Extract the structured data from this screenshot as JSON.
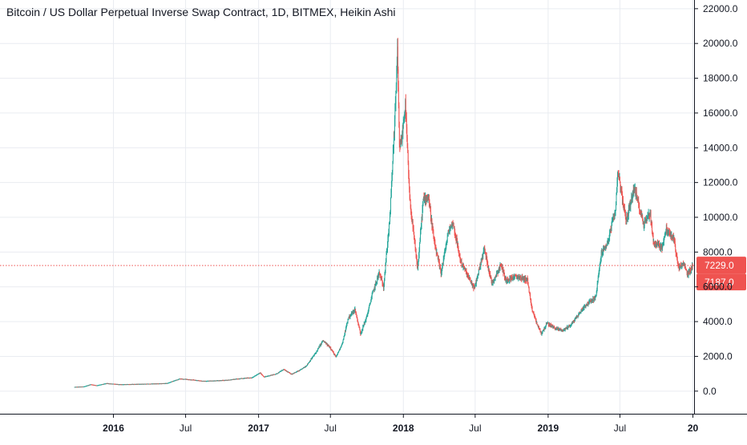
{
  "chart_data": {
    "type": "candlestick",
    "title": "Bitcoin / US Dollar Perpetual Inverse Swap Contract, 1D, BITMEX, Heikin Ashi",
    "xlabel": "",
    "ylabel": "",
    "ylim": [
      -1300,
      22500
    ],
    "grid": true,
    "legend": "none",
    "y_ticks": [
      "0.0",
      "2000.0",
      "4000.0",
      "6000.0",
      "8000.0",
      "10000.0",
      "12000.0",
      "14000.0",
      "16000.0",
      "18000.0",
      "20000.0",
      "22000.0"
    ],
    "x_ticks": [
      {
        "label": "2016",
        "date": "2016-01-01",
        "bold": true
      },
      {
        "label": "Jul",
        "date": "2016-07-01",
        "bold": false
      },
      {
        "label": "2017",
        "date": "2017-01-01",
        "bold": true
      },
      {
        "label": "Jul",
        "date": "2017-07-01",
        "bold": false
      },
      {
        "label": "2018",
        "date": "2018-01-01",
        "bold": true
      },
      {
        "label": "Jul",
        "date": "2018-07-01",
        "bold": false
      },
      {
        "label": "2019",
        "date": "2019-01-01",
        "bold": true
      },
      {
        "label": "Jul",
        "date": "2019-07-01",
        "bold": false
      },
      {
        "label": "20",
        "date": "2020-01-01",
        "bold": true
      }
    ],
    "x_range": [
      "2015-03-21",
      "2020-01-04"
    ],
    "series": [
      {
        "name": "",
        "points": [
          [
            "2015-09-25",
            240
          ],
          [
            "2015-10-20",
            270
          ],
          [
            "2015-11-05",
            390
          ],
          [
            "2015-11-20",
            330
          ],
          [
            "2015-12-15",
            450
          ],
          [
            "2016-01-15",
            390
          ],
          [
            "2016-02-15",
            400
          ],
          [
            "2016-03-15",
            415
          ],
          [
            "2016-04-15",
            430
          ],
          [
            "2016-05-15",
            455
          ],
          [
            "2016-06-17",
            720
          ],
          [
            "2016-07-15",
            660
          ],
          [
            "2016-08-15",
            580
          ],
          [
            "2016-09-15",
            605
          ],
          [
            "2016-10-15",
            640
          ],
          [
            "2016-11-15",
            730
          ],
          [
            "2016-12-15",
            780
          ],
          [
            "2017-01-05",
            1050
          ],
          [
            "2017-01-15",
            820
          ],
          [
            "2017-02-15",
            1000
          ],
          [
            "2017-03-05",
            1250
          ],
          [
            "2017-03-25",
            980
          ],
          [
            "2017-04-15",
            1200
          ],
          [
            "2017-05-01",
            1450
          ],
          [
            "2017-05-25",
            2200
          ],
          [
            "2017-06-12",
            2900
          ],
          [
            "2017-07-01",
            2500
          ],
          [
            "2017-07-15",
            1950
          ],
          [
            "2017-08-01",
            2800
          ],
          [
            "2017-08-15",
            4200
          ],
          [
            "2017-09-01",
            4700
          ],
          [
            "2017-09-15",
            3300
          ],
          [
            "2017-10-01",
            4300
          ],
          [
            "2017-10-15",
            5600
          ],
          [
            "2017-11-01",
            6800
          ],
          [
            "2017-11-12",
            6000
          ],
          [
            "2017-11-28",
            10000
          ],
          [
            "2017-12-10",
            15500
          ],
          [
            "2017-12-17",
            19500
          ],
          [
            "2017-12-22",
            14000
          ],
          [
            "2017-12-28",
            14500
          ],
          [
            "2018-01-06",
            16500
          ],
          [
            "2018-01-17",
            11000
          ],
          [
            "2018-02-06",
            7000
          ],
          [
            "2018-02-20",
            11000
          ],
          [
            "2018-03-05",
            11200
          ],
          [
            "2018-03-20",
            8500
          ],
          [
            "2018-04-06",
            6800
          ],
          [
            "2018-04-25",
            9200
          ],
          [
            "2018-05-06",
            9700
          ],
          [
            "2018-05-25",
            7500
          ],
          [
            "2018-06-15",
            6500
          ],
          [
            "2018-06-29",
            5900
          ],
          [
            "2018-07-24",
            8200
          ],
          [
            "2018-08-12",
            6200
          ],
          [
            "2018-09-05",
            7300
          ],
          [
            "2018-09-15",
            6400
          ],
          [
            "2018-10-15",
            6600
          ],
          [
            "2018-11-10",
            6400
          ],
          [
            "2018-11-20",
            4800
          ],
          [
            "2018-12-05",
            3800
          ],
          [
            "2018-12-15",
            3300
          ],
          [
            "2018-12-29",
            3900
          ],
          [
            "2019-01-20",
            3600
          ],
          [
            "2019-02-08",
            3500
          ],
          [
            "2019-03-01",
            3850
          ],
          [
            "2019-04-03",
            4900
          ],
          [
            "2019-05-01",
            5400
          ],
          [
            "2019-05-15",
            7900
          ],
          [
            "2019-06-01",
            8600
          ],
          [
            "2019-06-20",
            10500
          ],
          [
            "2019-06-26",
            12800
          ],
          [
            "2019-07-06",
            11200
          ],
          [
            "2019-07-17",
            9800
          ],
          [
            "2019-08-06",
            11700
          ],
          [
            "2019-08-30",
            9600
          ],
          [
            "2019-09-15",
            10300
          ],
          [
            "2019-09-24",
            8500
          ],
          [
            "2019-10-15",
            8300
          ],
          [
            "2019-10-26",
            9300
          ],
          [
            "2019-11-15",
            8700
          ],
          [
            "2019-11-25",
            7100
          ],
          [
            "2019-12-10",
            7300
          ],
          [
            "2019-12-18",
            6700
          ],
          [
            "2019-12-31",
            7200
          ]
        ]
      }
    ],
    "price_line": {
      "value": 7229.0,
      "label": "7229.0",
      "color": "#ef5350"
    },
    "price_tags": [
      {
        "label": "7229.0",
        "value": 7229.0,
        "color": "#ef5350"
      },
      {
        "label": "7187.0",
        "value": 7187.0,
        "color": "#ef5350"
      }
    ],
    "colors": {
      "up": "#26a69a",
      "down": "#ef5350",
      "grid": "#e9ecf1",
      "axis": "#131722"
    }
  }
}
